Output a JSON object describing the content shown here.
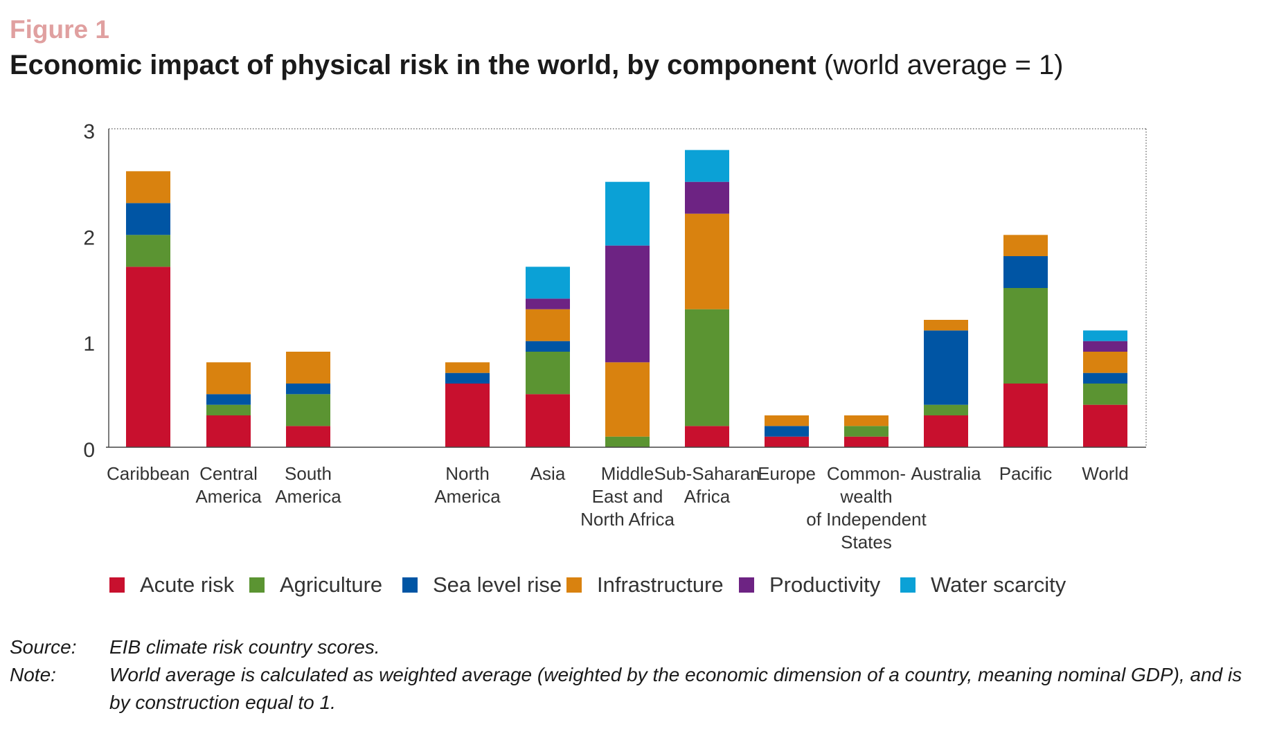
{
  "figure": {
    "label": "Figure 1",
    "title": "Economic impact of physical risk in the world, by component",
    "subtitle": "(world average = 1)"
  },
  "chart_data": {
    "type": "bar",
    "stacked": true,
    "ylim": [
      0,
      3
    ],
    "yticks": [
      "0",
      "1",
      "2",
      "3"
    ],
    "grid": false,
    "legend_position": "bottom",
    "categories": [
      [
        "Caribbean"
      ],
      [
        "Central",
        "America"
      ],
      [
        "South",
        "America"
      ],
      [
        "North",
        "America"
      ],
      [
        "Asia"
      ],
      [
        "Middle",
        "East and",
        "North Africa"
      ],
      [
        "Sub-Saharan",
        "Africa"
      ],
      [
        "Europe"
      ],
      [
        "Common-",
        "wealth",
        "of Independent",
        "States"
      ],
      [
        "Australia"
      ],
      [
        "Pacific"
      ],
      [
        "World"
      ]
    ],
    "series": [
      {
        "name": "Acute risk",
        "color": "#c8102e",
        "values": [
          1.7,
          0.3,
          0.2,
          0.6,
          0.5,
          0.0,
          0.2,
          0.1,
          0.1,
          0.3,
          0.6,
          0.4
        ]
      },
      {
        "name": "Agriculture",
        "color": "#5b9432",
        "values": [
          0.3,
          0.1,
          0.3,
          0.0,
          0.4,
          0.1,
          1.1,
          0.0,
          0.1,
          0.1,
          0.9,
          0.2
        ]
      },
      {
        "name": "Sea level rise",
        "color": "#0055a4",
        "values": [
          0.3,
          0.1,
          0.1,
          0.1,
          0.1,
          0.0,
          0.0,
          0.1,
          0.0,
          0.7,
          0.3,
          0.1
        ]
      },
      {
        "name": "Infrastructure",
        "color": "#d9820f",
        "values": [
          0.3,
          0.3,
          0.3,
          0.1,
          0.3,
          0.7,
          0.9,
          0.1,
          0.1,
          0.1,
          0.2,
          0.2
        ]
      },
      {
        "name": "Productivity",
        "color": "#6d2383",
        "values": [
          0.0,
          0.0,
          0.0,
          0.0,
          0.1,
          1.1,
          0.3,
          0.0,
          0.0,
          0.0,
          0.0,
          0.1
        ]
      },
      {
        "name": "Water scarcity",
        "color": "#0ba1d6",
        "values": [
          0.0,
          0.0,
          0.0,
          0.0,
          0.3,
          0.6,
          0.3,
          0.0,
          0.0,
          0.0,
          0.0,
          0.1
        ]
      }
    ]
  },
  "notes": {
    "source_key": "Source:",
    "source_text": "EIB climate risk country scores.",
    "note_key": "Note:",
    "note_text": "World average is calculated as weighted average (weighted by the economic dimension of a country, meaning nominal GDP), and is by construction equal to 1."
  }
}
